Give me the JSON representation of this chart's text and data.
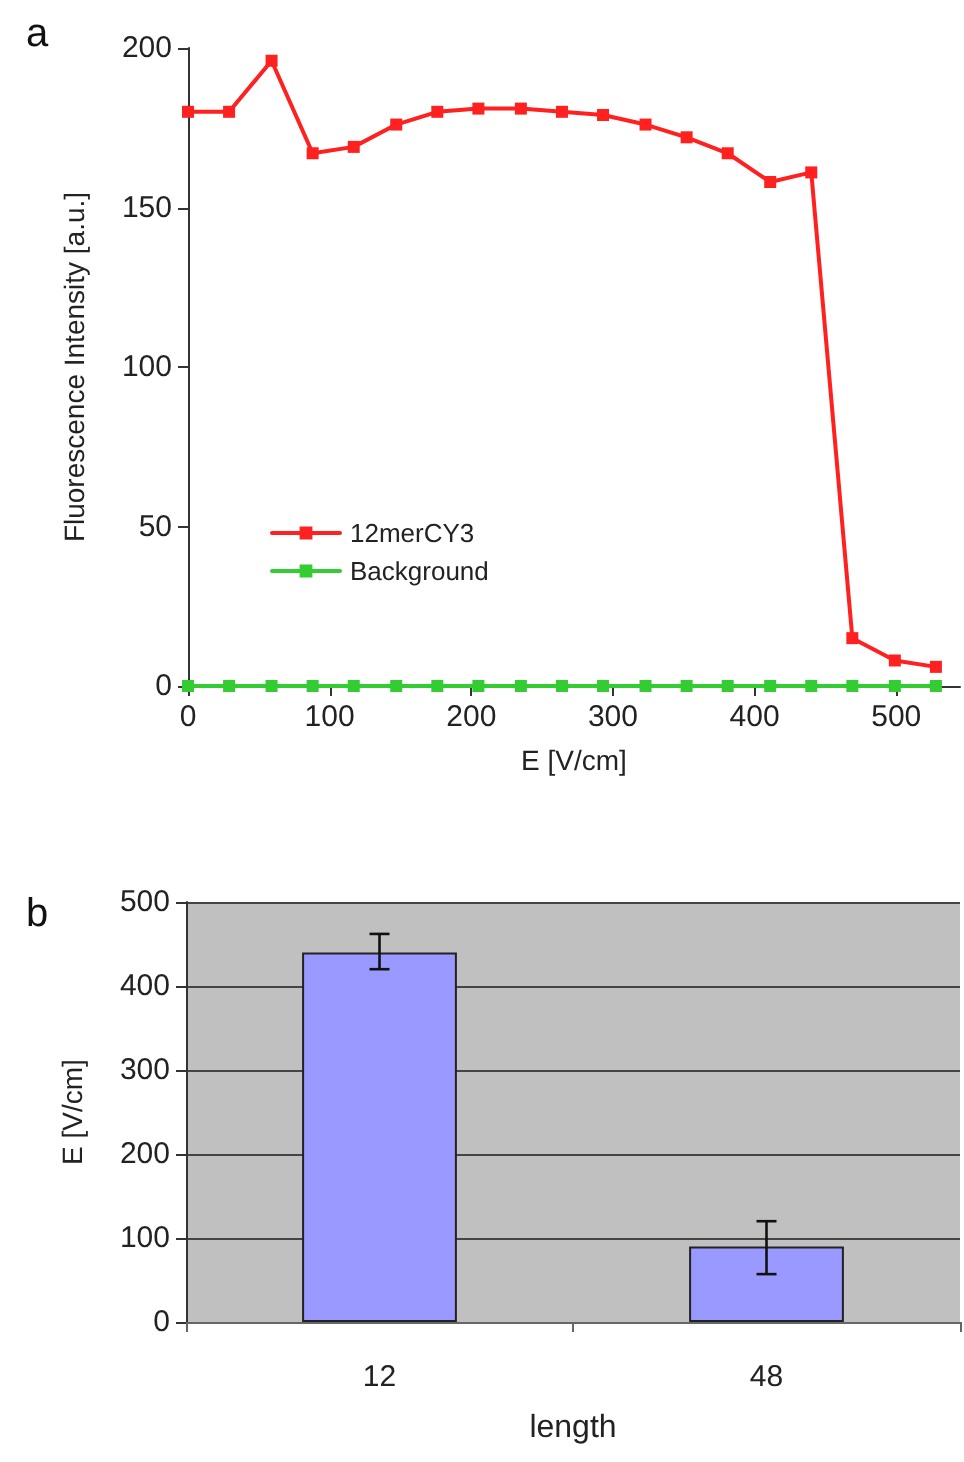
{
  "chart_data": [
    {
      "type": "line",
      "title": "a",
      "xlabel": "E [V/cm]",
      "ylabel": "Fluorescence Intensity [a.u.]",
      "x": [
        0,
        29,
        59,
        88,
        117,
        147,
        176,
        205,
        235,
        264,
        293,
        323,
        352,
        381,
        411,
        440,
        469,
        499,
        528
      ],
      "series": [
        {
          "name": "12merCY3",
          "color": "#ff2020",
          "values": [
            180,
            180,
            196,
            167,
            169,
            176,
            180,
            181,
            181,
            180,
            179,
            176,
            172,
            167,
            158,
            161,
            15,
            8,
            6
          ]
        },
        {
          "name": "Background",
          "color": "#33cc33",
          "values": [
            0,
            0,
            0,
            0,
            0,
            0,
            0,
            0,
            0,
            0,
            0,
            0,
            0,
            0,
            0,
            0,
            0,
            0,
            0
          ]
        }
      ],
      "xlim": [
        0,
        545
      ],
      "xticks": [
        0,
        100,
        200,
        300,
        400,
        500
      ],
      "ylim": [
        0,
        200
      ],
      "yticks": [
        0,
        50,
        100,
        150,
        200
      ],
      "grid": false,
      "legend": "left",
      "marker": "square",
      "line_style": "solid"
    },
    {
      "type": "bar",
      "title": "b",
      "xlabel": "length",
      "ylabel": "E [V/cm]",
      "categories": [
        "12",
        "48"
      ],
      "series": [
        {
          "color": "#9999ff",
          "values": [
            440,
            90
          ],
          "errors": [
            [
              420,
              462
            ],
            [
              57,
              120
            ]
          ]
        }
      ],
      "ylim": [
        0,
        500
      ],
      "yticks": [
        0,
        100,
        200,
        300,
        400,
        500
      ],
      "grid": "y"
    }
  ]
}
